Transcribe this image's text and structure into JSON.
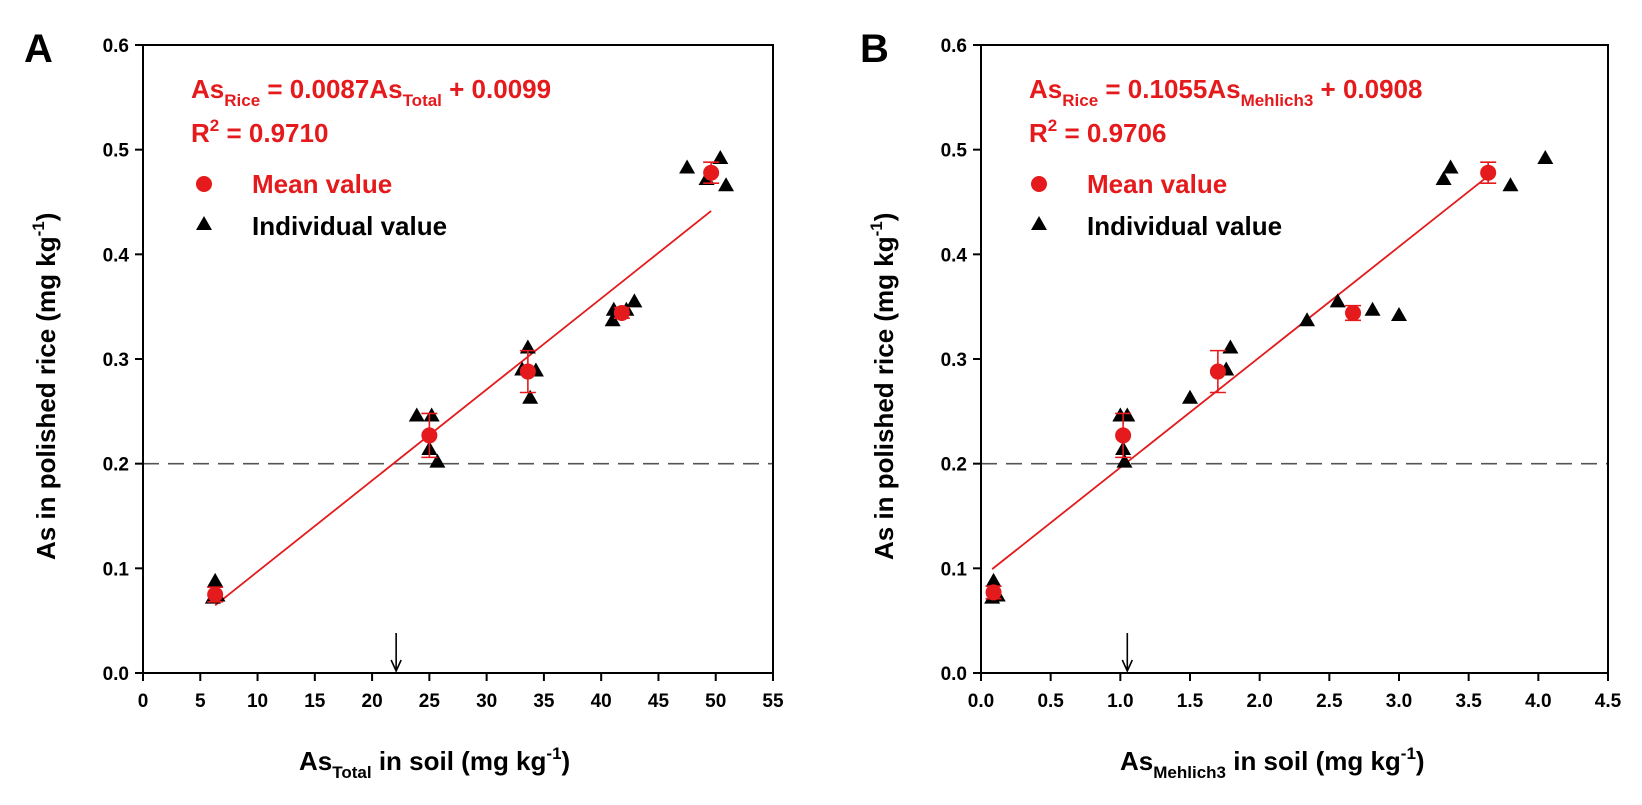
{
  "colors": {
    "mean": "#e41a1c",
    "individual": "#000000",
    "fit": "#e41a1c",
    "threshold": "#555555"
  },
  "chart_data": [
    {
      "panel": "A",
      "type": "scatter",
      "xlabel": {
        "main": "As",
        "sub": "Total",
        "rest": " in soil (mg kg",
        "sup": "-1",
        "end": ")"
      },
      "ylabel": {
        "main": "As in polished rice (mg kg",
        "sup": "-1",
        "end": ")"
      },
      "xlim": [
        0,
        55
      ],
      "ylim": [
        0,
        0.6
      ],
      "xticks": [
        "0",
        "5",
        "10",
        "15",
        "20",
        "25",
        "30",
        "35",
        "40",
        "45",
        "50",
        "55"
      ],
      "xtick_values": [
        0,
        5,
        10,
        15,
        20,
        25,
        30,
        35,
        40,
        45,
        50,
        55
      ],
      "yticks": [
        "0.0",
        "0.1",
        "0.2",
        "0.3",
        "0.4",
        "0.5",
        "0.6"
      ],
      "ytick_values": [
        0,
        0.1,
        0.2,
        0.3,
        0.4,
        0.5,
        0.6
      ],
      "equation": {
        "lhs": "As",
        "lhs_sub": "Rice",
        "mid": " = 0.0087As",
        "mid_sub": "Total",
        "rhs": " + 0.0099"
      },
      "r2": {
        "pre": "R",
        "sup": "2",
        "post": " = 0.9710"
      },
      "legend": {
        "mean": "Mean value",
        "individual": "Individual value"
      },
      "fit": {
        "slope": 0.0087,
        "intercept": 0.0099,
        "x_range": [
          6.3,
          49.6
        ]
      },
      "threshold_y": 0.2,
      "arrow_x": 22.1,
      "mean_points": [
        {
          "x": 6.3,
          "y": 0.075,
          "err": 0.007
        },
        {
          "x": 25.0,
          "y": 0.227,
          "err": 0.021
        },
        {
          "x": 33.6,
          "y": 0.288,
          "err": 0.02
        },
        {
          "x": 41.8,
          "y": 0.344,
          "err": 0.005
        },
        {
          "x": 49.6,
          "y": 0.478,
          "err": 0.01
        }
      ],
      "individual_points": [
        {
          "x": 6.1,
          "y": 0.072
        },
        {
          "x": 6.3,
          "y": 0.088
        },
        {
          "x": 6.5,
          "y": 0.074
        },
        {
          "x": 23.9,
          "y": 0.246
        },
        {
          "x": 25.2,
          "y": 0.246
        },
        {
          "x": 25.0,
          "y": 0.214
        },
        {
          "x": 25.7,
          "y": 0.202
        },
        {
          "x": 33.1,
          "y": 0.29
        },
        {
          "x": 33.6,
          "y": 0.311
        },
        {
          "x": 34.3,
          "y": 0.289
        },
        {
          "x": 33.8,
          "y": 0.263
        },
        {
          "x": 41.0,
          "y": 0.337
        },
        {
          "x": 41.1,
          "y": 0.347
        },
        {
          "x": 42.2,
          "y": 0.347
        },
        {
          "x": 42.9,
          "y": 0.355
        },
        {
          "x": 47.5,
          "y": 0.483
        },
        {
          "x": 49.2,
          "y": 0.472
        },
        {
          "x": 50.4,
          "y": 0.492
        },
        {
          "x": 50.9,
          "y": 0.466
        }
      ]
    },
    {
      "panel": "B",
      "type": "scatter",
      "xlabel": {
        "main": "As",
        "sub": "Mehlich3",
        "rest": " in soil (mg kg",
        "sup": "-1",
        "end": ")"
      },
      "ylabel": {
        "main": "As in polished rice (mg kg",
        "sup": "-1",
        "end": ")"
      },
      "xlim": [
        0,
        4.5
      ],
      "ylim": [
        0,
        0.6
      ],
      "xticks": [
        "0.0",
        "0.5",
        "1.0",
        "1.5",
        "2.0",
        "2.5",
        "3.0",
        "3.5",
        "4.0",
        "4.5"
      ],
      "xtick_values": [
        0,
        0.5,
        1.0,
        1.5,
        2.0,
        2.5,
        3.0,
        3.5,
        4.0,
        4.5
      ],
      "yticks": [
        "0.0",
        "0.1",
        "0.2",
        "0.3",
        "0.4",
        "0.5",
        "0.6"
      ],
      "ytick_values": [
        0,
        0.1,
        0.2,
        0.3,
        0.4,
        0.5,
        0.6
      ],
      "equation": {
        "lhs": "As",
        "lhs_sub": "Rice",
        "mid": " = 0.1055As",
        "mid_sub": "Mehlich3",
        "rhs": " + 0.0908"
      },
      "r2": {
        "pre": "R",
        "sup": "2",
        "post": " = 0.9706"
      },
      "legend": {
        "mean": "Mean value",
        "individual": "Individual value"
      },
      "fit": {
        "slope": 0.1055,
        "intercept": 0.0908,
        "x_range": [
          0.08,
          3.64
        ]
      },
      "threshold_y": 0.2,
      "arrow_x": 1.05,
      "mean_points": [
        {
          "x": 0.09,
          "y": 0.077,
          "err": 0.006
        },
        {
          "x": 1.02,
          "y": 0.227,
          "err": 0.021
        },
        {
          "x": 1.7,
          "y": 0.288,
          "err": 0.02
        },
        {
          "x": 2.67,
          "y": 0.344,
          "err": 0.007
        },
        {
          "x": 3.64,
          "y": 0.478,
          "err": 0.01
        }
      ],
      "individual_points": [
        {
          "x": 0.08,
          "y": 0.072
        },
        {
          "x": 0.09,
          "y": 0.088
        },
        {
          "x": 0.12,
          "y": 0.074
        },
        {
          "x": 1.0,
          "y": 0.246
        },
        {
          "x": 1.05,
          "y": 0.246
        },
        {
          "x": 1.02,
          "y": 0.214
        },
        {
          "x": 1.03,
          "y": 0.202
        },
        {
          "x": 1.5,
          "y": 0.263
        },
        {
          "x": 1.76,
          "y": 0.29
        },
        {
          "x": 1.79,
          "y": 0.311
        },
        {
          "x": 2.34,
          "y": 0.337
        },
        {
          "x": 2.56,
          "y": 0.355
        },
        {
          "x": 2.81,
          "y": 0.347
        },
        {
          "x": 3.0,
          "y": 0.342
        },
        {
          "x": 3.32,
          "y": 0.472
        },
        {
          "x": 3.37,
          "y": 0.483
        },
        {
          "x": 3.8,
          "y": 0.466
        },
        {
          "x": 4.05,
          "y": 0.492
        }
      ]
    }
  ]
}
